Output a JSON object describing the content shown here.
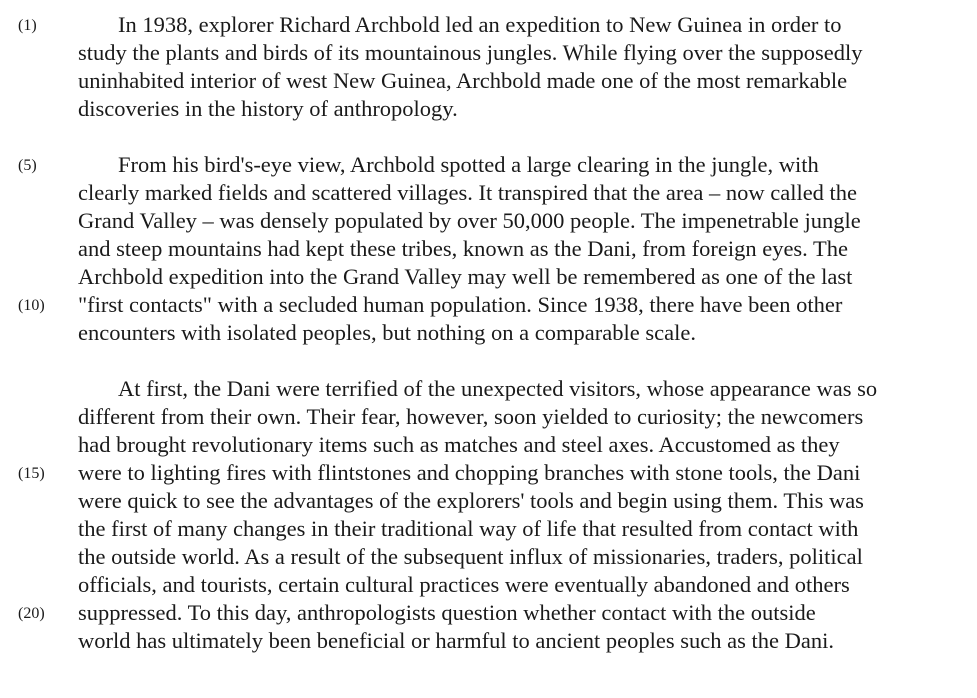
{
  "passage": {
    "paragraphs": [
      {
        "lines": [
          "In 1938, explorer Richard Archbold led an expedition to New Guinea in order to",
          "study the plants and birds of its mountainous jungles.  While flying over the supposedly",
          "uninhabited interior of west New Guinea, Archbold made one of the most remarkable",
          "discoveries in the history of anthropology."
        ]
      },
      {
        "lines": [
          "From his bird's-eye view, Archbold spotted a large clearing in the jungle, with",
          "clearly marked fields and scattered villages.  It transpired that the area – now called the",
          "Grand Valley – was densely populated by over 50,000 people.  The impenetrable jungle",
          "and steep mountains had kept these tribes, known as the Dani, from foreign eyes.  The",
          "Archbold expedition into the Grand Valley may well be remembered as one of the last",
          "\"first contacts\" with a secluded human population.  Since 1938, there have been other",
          "encounters with isolated peoples, but nothing on a comparable scale."
        ]
      },
      {
        "lines": [
          "At first, the Dani were terrified of the unexpected visitors, whose appearance was so",
          "different from their own.  Their fear, however, soon yielded to curiosity; the newcomers",
          "had brought revolutionary items such as matches and steel axes.  Accustomed as they",
          "were to lighting fires with flintstones and chopping branches with stone tools, the Dani",
          "were quick to see the advantages of the explorers' tools and begin using them.  This was",
          "the first of many changes in their traditional way of life that resulted from contact with",
          "the outside world.  As a result of the subsequent influx of missionaries, traders, political",
          "officials, and tourists, certain cultural practices were eventually abandoned and others",
          "suppressed.  To this day, anthropologists question whether contact with the outside",
          "world has ultimately been beneficial or harmful to ancient peoples such as the Dani."
        ]
      }
    ]
  },
  "line_numbers": [
    "(1)",
    "(5)",
    "(10)",
    "(15)",
    "(20)"
  ]
}
